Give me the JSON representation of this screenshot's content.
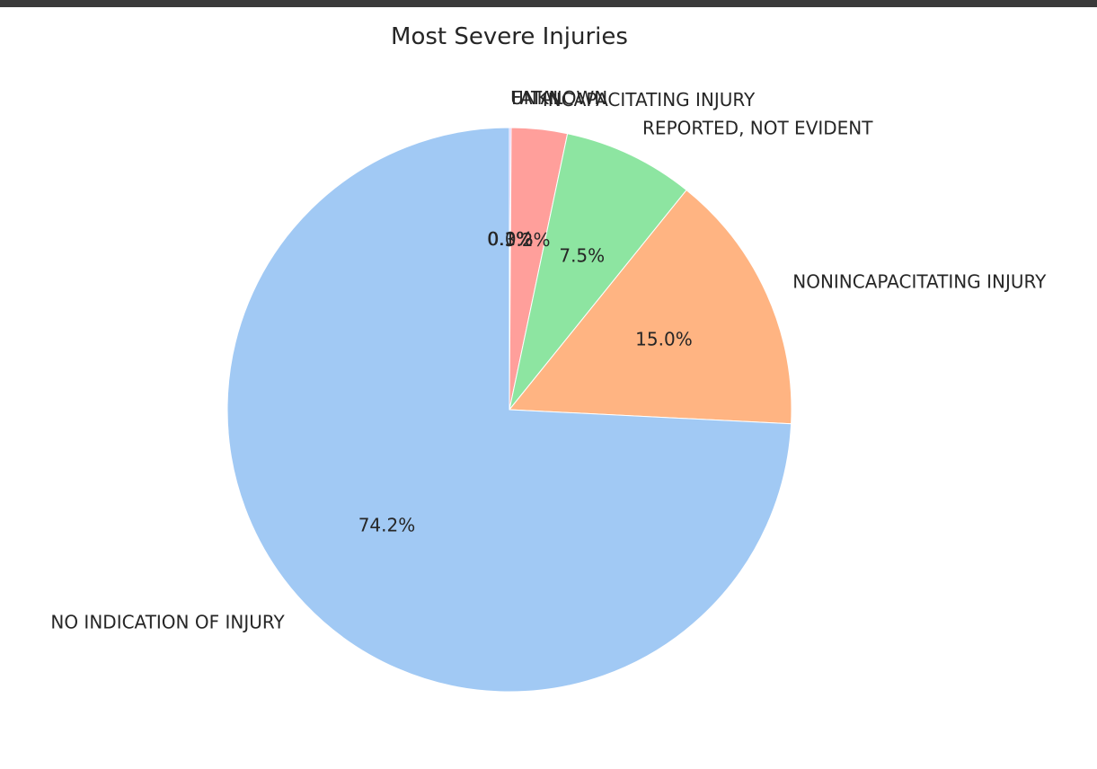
{
  "chart_data": {
    "type": "pie",
    "title": "Most Severe Injuries",
    "start_angle_deg": 90,
    "direction": "clockwise",
    "slices": [
      {
        "label": "UNKNOWN",
        "value": 0.1,
        "pct_label": "0.1%",
        "color": "#d0bbff"
      },
      {
        "label": "FATAL",
        "value": 0.0,
        "pct_label": "0.0%",
        "color": "#debb9b"
      },
      {
        "label": "INCAPACITATING INJURY",
        "value": 3.2,
        "pct_label": "3.2%",
        "color": "#ff9f9b"
      },
      {
        "label": "REPORTED, NOT EVIDENT",
        "value": 7.5,
        "pct_label": "7.5%",
        "color": "#8de5a1"
      },
      {
        "label": "NONINCAPACITATING INJURY",
        "value": 15.0,
        "pct_label": "15.0%",
        "color": "#ffb482"
      },
      {
        "label": "NO INDICATION OF INJURY",
        "value": 74.2,
        "pct_label": "74.2%",
        "color": "#a1c9f4"
      }
    ]
  }
}
